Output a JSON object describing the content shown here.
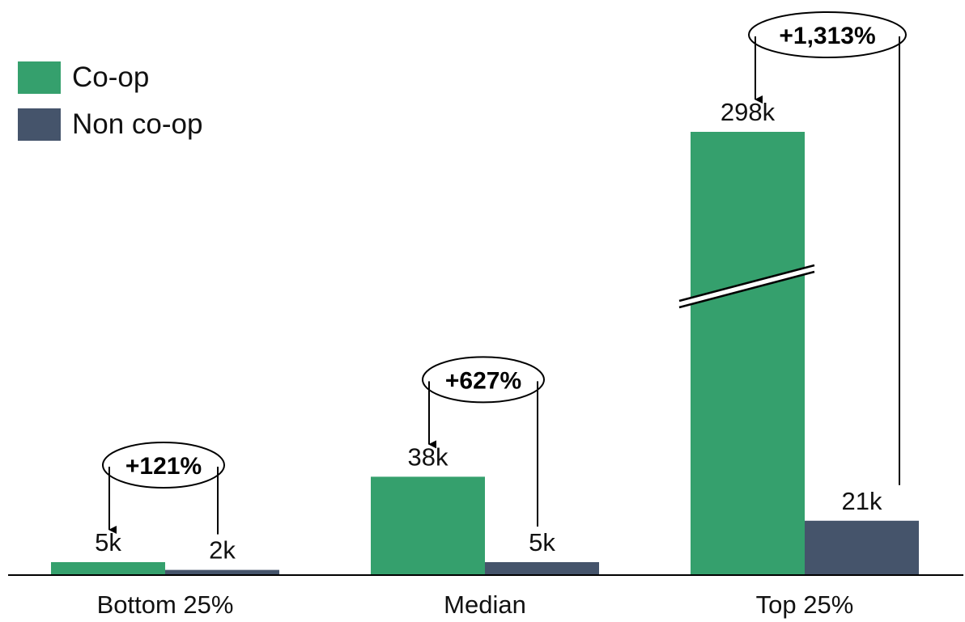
{
  "chart_data": {
    "type": "bar",
    "categories": [
      "Bottom 25%",
      "Median",
      "Top 25%"
    ],
    "series": [
      {
        "name": "Co-op",
        "color": "#35a06d",
        "values": [
          5,
          38,
          298
        ],
        "labels": [
          "5k",
          "38k",
          "298k"
        ]
      },
      {
        "name": "Non co-op",
        "color": "#45546b",
        "values": [
          2,
          5,
          21
        ],
        "labels": [
          "2k",
          "5k",
          "21k"
        ]
      }
    ],
    "annotations": [
      "+121%",
      "+627%",
      "+1,313%"
    ],
    "axis_break": {
      "series": "Co-op",
      "category": "Top 25%"
    },
    "legend_position": "top-left",
    "grid": false,
    "unit": "thousands"
  }
}
